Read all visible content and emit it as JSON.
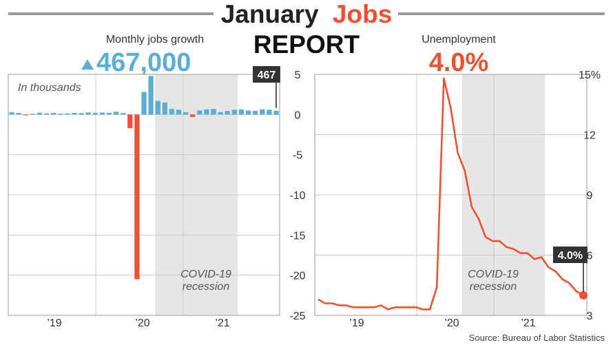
{
  "colors": {
    "blue": "#5aaed6",
    "red": "#f05032",
    "dark": "#222222",
    "grid": "#c8c8c8",
    "recession": "#e6e6e6",
    "label_bg": "#333333",
    "annot_text": "#555555",
    "axis_text": "#333333"
  },
  "header": {
    "title_word1": "January",
    "title_word2": "Jobs",
    "title_line2": "REPORT"
  },
  "source": "Source: Bureau of Labor Statistics",
  "chart_data": [
    {
      "type": "bar",
      "headline_label": "Monthly jobs growth",
      "headline_value": "467,000",
      "headline_icon": "up-triangle-icon",
      "units_note": "In thousands",
      "recession_label": [
        "COVID-19",
        "recession"
      ],
      "recession_range": [
        "2020-02",
        "2021-01"
      ],
      "callout": "467",
      "x_tick_labels": [
        "’19",
        "’20",
        "’21"
      ],
      "y_ticks": [
        5,
        0,
        -5,
        -10,
        -15,
        -20,
        -25
      ],
      "y_tick_labels": [
        "5",
        "0",
        "-5",
        "-10",
        "-15",
        "-20",
        "-25"
      ],
      "ylim": [
        -25,
        5
      ],
      "x_start": "2018-05",
      "values": [
        0.28,
        0.2,
        -0.06,
        0.1,
        0.22,
        0.15,
        0.2,
        0.12,
        0.15,
        0.2,
        0.18,
        0.26,
        0.22,
        0.24,
        0.2,
        0.35,
        0.18,
        -1.7,
        -20.5,
        2.8,
        4.8,
        1.7,
        1.5,
        0.7,
        0.6,
        0.28,
        -0.3,
        0.5,
        0.65,
        0.7,
        0.3,
        0.45,
        0.6,
        0.65,
        0.5,
        0.45,
        0.65,
        0.6,
        0.47
      ]
    },
    {
      "type": "line",
      "headline_label": "Unemployment",
      "headline_value": "4.0%",
      "recession_label": [
        "COVID-19",
        "recession"
      ],
      "recession_range": [
        "2020-02",
        "2021-01"
      ],
      "callout": "4.0%",
      "x_tick_labels": [
        "’19",
        "’20",
        "’21"
      ],
      "y_ticks": [
        15,
        12,
        9,
        6,
        3
      ],
      "y_tick_labels": [
        "15%",
        "12",
        "9",
        "6",
        "3"
      ],
      "ylim": [
        3,
        15
      ],
      "x_start": "2018-05",
      "values": [
        3.8,
        3.6,
        3.6,
        3.5,
        3.5,
        3.4,
        3.4,
        3.4,
        3.4,
        3.5,
        3.3,
        3.4,
        3.4,
        3.4,
        3.4,
        3.3,
        3.3,
        4.4,
        14.8,
        13.3,
        11.1,
        10.2,
        8.4,
        7.8,
        6.9,
        6.7,
        6.7,
        6.4,
        6.3,
        6.1,
        6.1,
        5.8,
        5.9,
        5.4,
        5.2,
        4.8,
        4.6,
        4.2,
        4.0
      ]
    }
  ]
}
